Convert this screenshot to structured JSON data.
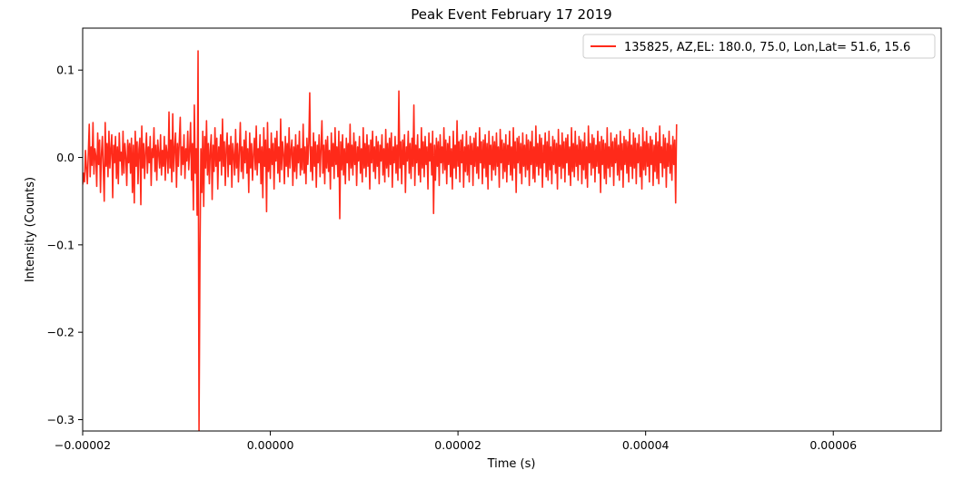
{
  "chart_data": {
    "type": "line",
    "title": "Peak Event February 17 2019",
    "xlabel": "Time (s)",
    "ylabel": "Intensity (Counts)",
    "xlim": [
      -2e-05,
      7.15e-05
    ],
    "ylim": [
      -0.313,
      0.148
    ],
    "grid": false,
    "legend_position": "top-right",
    "x_ticks": [
      {
        "value": -2e-05,
        "label": "−0.00002"
      },
      {
        "value": 0.0,
        "label": "0.00000"
      },
      {
        "value": 2e-05,
        "label": "0.00002"
      },
      {
        "value": 4e-05,
        "label": "0.00004"
      },
      {
        "value": 6e-05,
        "label": "0.00006"
      }
    ],
    "y_ticks": [
      {
        "value": 0.1,
        "label": "0.1"
      },
      {
        "value": 0.0,
        "label": "0.0"
      },
      {
        "value": -0.1,
        "label": "−0.1"
      },
      {
        "value": -0.2,
        "label": "−0.2"
      },
      {
        "value": -0.3,
        "label": "−0.3"
      }
    ],
    "series": [
      {
        "name": "135825, AZ,EL: 180.0, 75.0, Lon,Lat= 51.6, 15.6",
        "color": "#ff2a1a",
        "x_start": -2e-05,
        "x_step": 1e-07,
        "values": [
          -0.031,
          -0.018,
          -0.028,
          0.008,
          -0.012,
          -0.03,
          0.004,
          0.038,
          -0.022,
          0.012,
          -0.009,
          0.04,
          -0.019,
          0.01,
          0.002,
          -0.033,
          0.028,
          -0.008,
          0.02,
          -0.04,
          0.004,
          0.024,
          -0.014,
          -0.05,
          0.04,
          -0.01,
          0.016,
          -0.022,
          0.03,
          -0.012,
          0.01,
          0.026,
          -0.046,
          0.014,
          -0.006,
          0.024,
          -0.024,
          0.012,
          -0.03,
          0.028,
          -0.004,
          0.006,
          -0.02,
          0.03,
          -0.018,
          0.016,
          0.0,
          -0.032,
          0.02,
          -0.006,
          0.016,
          -0.018,
          0.022,
          -0.04,
          0.014,
          -0.052,
          0.03,
          -0.01,
          0.018,
          -0.03,
          0.01,
          0.022,
          -0.054,
          0.036,
          -0.012,
          0.016,
          -0.024,
          0.006,
          0.028,
          -0.018,
          0.012,
          -0.006,
          0.024,
          -0.032,
          0.01,
          0.0,
          0.034,
          -0.016,
          0.014,
          -0.026,
          0.02,
          0.004,
          -0.012,
          0.026,
          -0.02,
          0.008,
          -0.01,
          0.024,
          -0.026,
          0.014,
          0.004,
          -0.018,
          0.052,
          -0.012,
          0.02,
          -0.028,
          0.05,
          -0.016,
          0.01,
          0.028,
          -0.034,
          0.016,
          -0.01,
          0.02,
          0.046,
          -0.02,
          0.012,
          -0.008,
          0.026,
          -0.024,
          0.01,
          -0.004,
          0.03,
          -0.014,
          0.008,
          0.04,
          -0.026,
          0.016,
          -0.06,
          0.06,
          -0.018,
          0.01,
          -0.066,
          0.122,
          -0.314,
          -0.114,
          0.01,
          -0.04,
          0.03,
          -0.056,
          0.024,
          -0.012,
          0.042,
          -0.02,
          0.016,
          -0.03,
          0.008,
          0.026,
          -0.048,
          0.014,
          -0.016,
          0.034,
          -0.01,
          0.022,
          -0.036,
          0.012,
          -0.004,
          0.026,
          -0.02,
          0.044,
          -0.01,
          0.018,
          -0.032,
          0.01,
          0.028,
          -0.022,
          0.014,
          -0.008,
          0.024,
          -0.034,
          0.016,
          0.002,
          -0.02,
          0.032,
          -0.012,
          0.016,
          -0.028,
          0.008,
          0.04,
          -0.016,
          0.012,
          -0.024,
          0.02,
          -0.006,
          0.03,
          -0.018,
          0.01,
          -0.04,
          0.028,
          -0.012,
          0.016,
          -0.026,
          0.004,
          0.022,
          -0.014,
          0.036,
          -0.02,
          0.01,
          -0.006,
          0.026,
          -0.03,
          0.012,
          -0.046,
          0.034,
          -0.01,
          0.02,
          -0.062,
          0.04,
          -0.016,
          0.01,
          -0.024,
          0.028,
          -0.008,
          0.016,
          -0.036,
          0.022,
          -0.004,
          0.03,
          -0.018,
          0.012,
          -0.028,
          0.044,
          -0.014,
          0.018,
          0.004,
          -0.03,
          0.024,
          -0.01,
          0.016,
          -0.022,
          0.034,
          -0.012,
          0.008,
          0.02,
          -0.032,
          0.012,
          -0.016,
          0.026,
          -0.024,
          0.014,
          -0.006,
          0.03,
          -0.02,
          0.01,
          -0.014,
          0.038,
          -0.018,
          0.012,
          -0.03,
          0.022,
          -0.008,
          0.016,
          0.074,
          -0.016,
          0.012,
          -0.026,
          0.028,
          -0.01,
          0.018,
          -0.034,
          0.014,
          -0.006,
          0.026,
          -0.022,
          0.01,
          0.042,
          -0.018,
          0.014,
          -0.03,
          0.02,
          -0.012,
          0.024,
          -0.016,
          0.008,
          -0.036,
          0.028,
          -0.01,
          0.016,
          -0.024,
          0.034,
          -0.008,
          0.012,
          -0.022,
          0.03,
          -0.07,
          0.018,
          -0.014,
          0.026,
          -0.02,
          0.01,
          -0.03,
          0.022,
          -0.006,
          0.016,
          -0.026,
          0.038,
          -0.012,
          0.014,
          -0.02,
          0.028,
          -0.008,
          0.018,
          -0.032,
          0.012,
          -0.004,
          0.024,
          -0.018,
          0.01,
          -0.028,
          0.034,
          -0.012,
          0.016,
          -0.022,
          0.026,
          -0.01,
          0.014,
          -0.036,
          0.02,
          -0.006,
          0.03,
          -0.016,
          0.012,
          -0.024,
          0.024,
          -0.01,
          0.018,
          -0.03,
          0.014,
          -0.004,
          0.026,
          -0.02,
          0.01,
          -0.028,
          0.032,
          -0.012,
          0.016,
          -0.022,
          0.022,
          -0.008,
          0.028,
          -0.034,
          0.012,
          -0.006,
          0.024,
          -0.018,
          0.014,
          -0.026,
          0.076,
          -0.012,
          0.018,
          -0.03,
          0.02,
          -0.008,
          0.026,
          -0.04,
          0.012,
          -0.004,
          0.03,
          -0.018,
          0.016,
          -0.024,
          0.022,
          -0.01,
          0.06,
          -0.032,
          0.014,
          -0.006,
          0.026,
          -0.02,
          0.01,
          -0.028,
          0.034,
          -0.012,
          0.018,
          -0.022,
          0.024,
          -0.008,
          0.012,
          -0.036,
          0.028,
          -0.004,
          0.016,
          -0.02,
          0.03,
          -0.064,
          0.014,
          -0.026,
          0.022,
          -0.01,
          0.018,
          -0.032,
          0.026,
          -0.006,
          0.012,
          -0.018,
          0.034,
          -0.014,
          0.02,
          -0.03,
          0.016,
          -0.008,
          0.024,
          -0.022,
          0.01,
          -0.036,
          0.03,
          -0.012,
          0.014,
          -0.024,
          0.042,
          -0.01,
          0.018,
          -0.028,
          0.02,
          -0.006,
          0.026,
          -0.034,
          0.012,
          -0.016,
          0.03,
          -0.02,
          0.014,
          -0.028,
          0.024,
          -0.008,
          0.016,
          -0.032,
          0.022,
          -0.01,
          0.028,
          -0.018,
          0.012,
          -0.024,
          0.034,
          -0.006,
          0.018,
          -0.03,
          0.02,
          -0.012,
          0.026,
          -0.022,
          0.016,
          -0.036,
          0.03,
          -0.008,
          0.014,
          -0.026,
          0.024,
          -0.014,
          0.018,
          -0.02,
          0.028,
          -0.01,
          0.012,
          -0.034,
          0.032,
          -0.006,
          0.02,
          -0.024,
          0.016,
          -0.016,
          0.026,
          -0.028,
          0.014,
          -0.008,
          0.03,
          -0.02,
          0.012,
          -0.026,
          0.034,
          -0.012,
          0.018,
          -0.04,
          0.022,
          -0.006,
          0.024,
          -0.018,
          0.016,
          -0.03,
          0.028,
          -0.01,
          0.014,
          -0.022,
          0.026,
          -0.014,
          0.02,
          -0.032,
          0.018,
          -0.008,
          0.03,
          -0.024,
          0.012,
          -0.028,
          0.036,
          -0.01,
          0.016,
          -0.02,
          0.026,
          -0.012,
          0.022,
          -0.034,
          0.014,
          -0.006,
          0.028,
          -0.022,
          0.018,
          -0.026,
          0.03,
          -0.014,
          0.012,
          -0.03,
          0.024,
          -0.008,
          0.02,
          -0.018,
          0.016,
          -0.036,
          0.032,
          -0.01,
          0.014,
          -0.024,
          0.028,
          -0.012,
          0.018,
          -0.028,
          0.022,
          -0.006,
          0.026,
          -0.02,
          0.012,
          -0.032,
          0.034,
          -0.016,
          0.016,
          -0.022,
          0.03,
          -0.01,
          0.014,
          -0.026,
          0.024,
          -0.008,
          0.02,
          -0.03,
          0.018,
          -0.014,
          0.028,
          -0.024,
          0.012,
          -0.034,
          0.036,
          -0.006,
          0.016,
          -0.02,
          0.026,
          -0.012,
          0.022,
          -0.028,
          0.014,
          -0.01,
          0.03,
          -0.018,
          0.018,
          -0.04,
          0.024,
          -0.008,
          0.02,
          -0.024,
          0.016,
          -0.03,
          0.034,
          -0.012,
          0.012,
          -0.022,
          0.028,
          -0.01,
          0.018,
          -0.032,
          0.022,
          -0.006,
          0.026,
          -0.02,
          0.014,
          -0.026,
          0.03,
          -0.014,
          0.016,
          -0.034,
          0.024,
          -0.008,
          0.02,
          -0.018,
          0.018,
          -0.028,
          0.032,
          -0.01,
          0.014,
          -0.024,
          0.028,
          -0.012,
          0.022,
          -0.03,
          0.016,
          -0.006,
          0.026,
          -0.022,
          0.012,
          -0.036,
          0.034,
          -0.014,
          0.018,
          -0.02,
          0.03,
          -0.01,
          0.016,
          -0.028,
          0.024,
          -0.008,
          0.02,
          -0.032,
          0.014,
          -0.016,
          0.028,
          -0.024,
          0.018,
          -0.03,
          0.036,
          -0.006,
          0.012,
          -0.022,
          0.026,
          -0.012,
          0.022,
          -0.034,
          0.016,
          -0.01,
          0.03,
          -0.018,
          0.014,
          -0.026,
          0.024,
          -0.008,
          0.02,
          -0.052,
          0.038
        ]
      }
    ]
  }
}
